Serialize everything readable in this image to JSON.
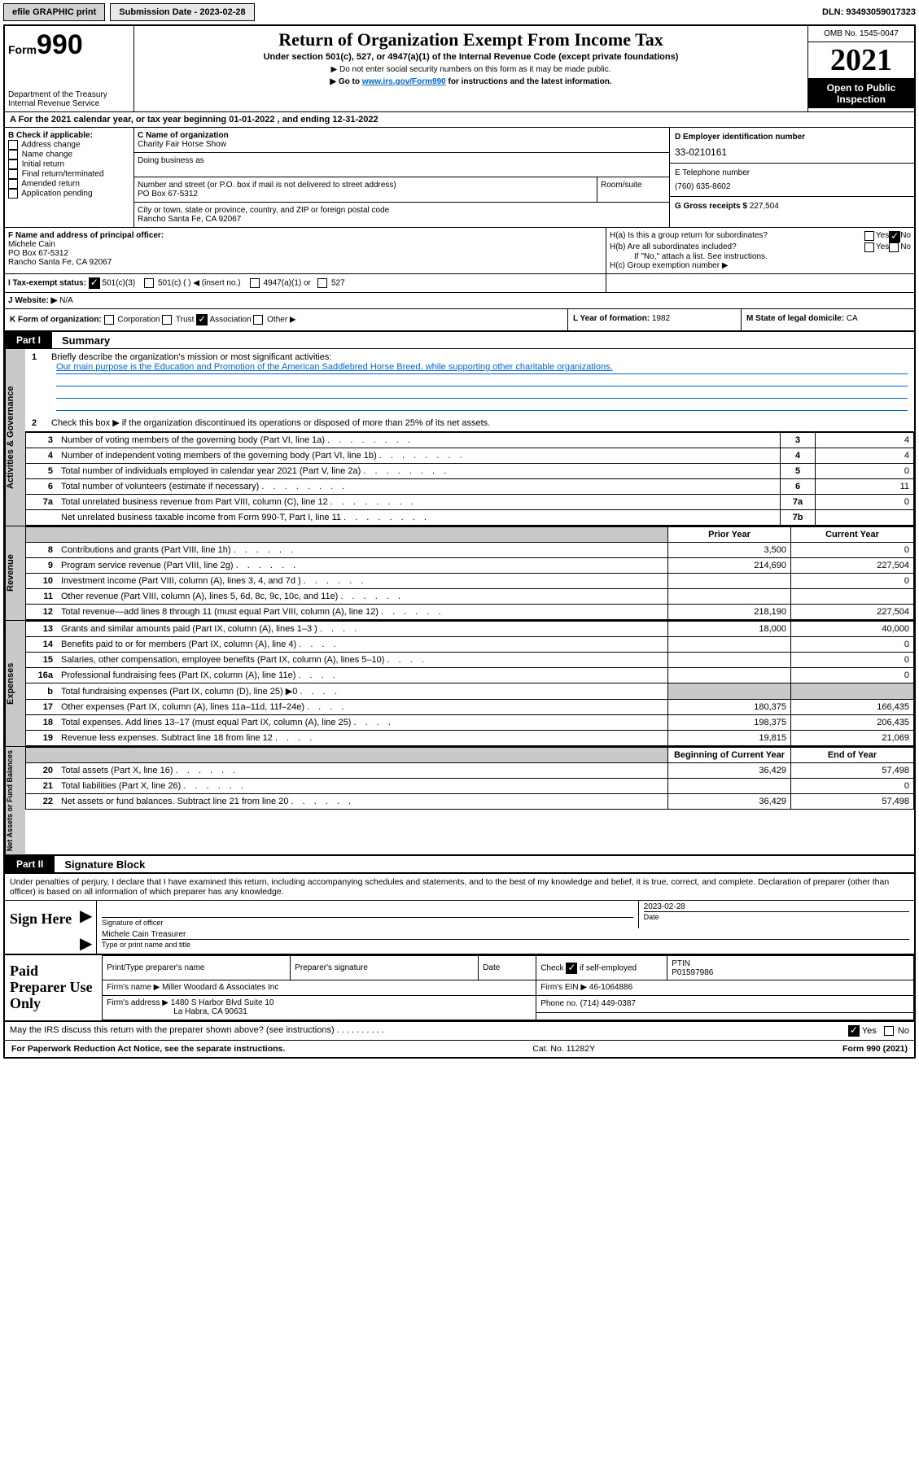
{
  "topbar": {
    "efile": "efile GRAPHIC print",
    "submission_label": "Submission Date - ",
    "submission_date": "2023-02-28",
    "dln_label": "DLN: ",
    "dln": "93493059017323"
  },
  "header": {
    "form_prefix": "Form",
    "form_number": "990",
    "title": "Return of Organization Exempt From Income Tax",
    "subtitle": "Under section 501(c), 527, or 4947(a)(1) of the Internal Revenue Code (except private foundations)",
    "note1": "▶ Do not enter social security numbers on this form as it may be made public.",
    "note2_pre": "▶ Go to ",
    "note2_link": "www.irs.gov/Form990",
    "note2_post": " for instructions and the latest information.",
    "dept": "Department of the Treasury\nInternal Revenue Service",
    "omb": "OMB No. 1545-0047",
    "year": "2021",
    "open": "Open to Public Inspection"
  },
  "rowA": "A For the 2021 calendar year, or tax year beginning 01-01-2022    , and ending 12-31-2022",
  "secB": {
    "label": "B Check if applicable:",
    "items": [
      "Address change",
      "Name change",
      "Initial return",
      "Final return/terminated",
      "Amended return",
      "Application pending"
    ]
  },
  "secC": {
    "name_label": "C Name of organization",
    "name": "Charity Fair Horse Show",
    "dba_label": "Doing business as",
    "street_label": "Number and street (or P.O. box if mail is not delivered to street address)",
    "room_label": "Room/suite",
    "street": "PO Box 67-5312",
    "city_label": "City or town, state or province, country, and ZIP or foreign postal code",
    "city": "Rancho Santa Fe, CA  92067"
  },
  "secD": {
    "label": "D Employer identification number",
    "value": "33-0210161"
  },
  "secE": {
    "label": "E Telephone number",
    "value": "(760) 635-8602"
  },
  "secG": {
    "label": "G Gross receipts $ ",
    "value": "227,504"
  },
  "secF": {
    "label": "F  Name and address of principal officer:",
    "name": "Michele Cain",
    "addr1": "PO Box 67-5312",
    "addr2": "Rancho Santa Fe, CA  92067"
  },
  "secH": {
    "ha": "H(a)  Is this a group return for subordinates?",
    "hb": "H(b)  Are all subordinates included?",
    "hnote": "If \"No,\" attach a list. See instructions.",
    "hc": "H(c)  Group exemption number ▶"
  },
  "secI": {
    "label": "I   Tax-exempt status:",
    "opts": [
      "501(c)(3)",
      "501(c) (  ) ◀ (insert no.)",
      "4947(a)(1) or",
      "527"
    ]
  },
  "secJ": {
    "label": "J   Website: ▶",
    "value": "N/A"
  },
  "secK": {
    "label": "K Form of organization:",
    "opts": [
      "Corporation",
      "Trust",
      "Association",
      "Other ▶"
    ]
  },
  "secL": {
    "label": "L Year of formation: ",
    "value": "1982"
  },
  "secM": {
    "label": "M State of legal domicile: ",
    "value": "CA"
  },
  "partI": {
    "tag": "Part I",
    "label": "Summary",
    "q1": "Briefly describe the organization's mission or most significant activities:",
    "mission": "Our main purpose is the Education and Promotion of the American Saddlebred Horse Breed, while supporting other charitable organizations.",
    "q2": "Check this box ▶      if the organization discontinued its operations or disposed of more than 25% of its net assets.",
    "lines_activities": [
      [
        "3",
        "Number of voting members of the governing body (Part VI, line 1a)",
        "3",
        "4"
      ],
      [
        "4",
        "Number of independent voting members of the governing body (Part VI, line 1b)",
        "4",
        "4"
      ],
      [
        "5",
        "Total number of individuals employed in calendar year 2021 (Part V, line 2a)",
        "5",
        "0"
      ],
      [
        "6",
        "Total number of volunteers (estimate if necessary)",
        "6",
        "11"
      ],
      [
        "7a",
        "Total unrelated business revenue from Part VIII, column (C), line 12",
        "7a",
        "0"
      ],
      [
        "",
        "Net unrelated business taxable income from Form 990-T, Part I, line 11",
        "7b",
        ""
      ]
    ],
    "hdr_prior": "Prior Year",
    "hdr_current": "Current Year",
    "revenue": [
      [
        "8",
        "Contributions and grants (Part VIII, line 1h)",
        "3,500",
        "0"
      ],
      [
        "9",
        "Program service revenue (Part VIII, line 2g)",
        "214,690",
        "227,504"
      ],
      [
        "10",
        "Investment income (Part VIII, column (A), lines 3, 4, and 7d )",
        "",
        "0"
      ],
      [
        "11",
        "Other revenue (Part VIII, column (A), lines 5, 6d, 8c, 9c, 10c, and 11e)",
        "",
        ""
      ],
      [
        "12",
        "Total revenue—add lines 8 through 11 (must equal Part VIII, column (A), line 12)",
        "218,190",
        "227,504"
      ]
    ],
    "expenses": [
      [
        "13",
        "Grants and similar amounts paid (Part IX, column (A), lines 1–3 )",
        "18,000",
        "40,000"
      ],
      [
        "14",
        "Benefits paid to or for members (Part IX, column (A), line 4)",
        "",
        "0"
      ],
      [
        "15",
        "Salaries, other compensation, employee benefits (Part IX, column (A), lines 5–10)",
        "",
        "0"
      ],
      [
        "16a",
        "Professional fundraising fees (Part IX, column (A), line 11e)",
        "",
        "0"
      ],
      [
        "b",
        "Total fundraising expenses (Part IX, column (D), line 25) ▶0",
        "grey",
        "grey"
      ],
      [
        "17",
        "Other expenses (Part IX, column (A), lines 11a–11d, 11f–24e)",
        "180,375",
        "166,435"
      ],
      [
        "18",
        "Total expenses. Add lines 13–17 (must equal Part IX, column (A), line 25)",
        "198,375",
        "206,435"
      ],
      [
        "19",
        "Revenue less expenses. Subtract line 18 from line 12",
        "19,815",
        "21,069"
      ]
    ],
    "hdr_begin": "Beginning of Current Year",
    "hdr_end": "End of Year",
    "netassets": [
      [
        "20",
        "Total assets (Part X, line 16)",
        "36,429",
        "57,498"
      ],
      [
        "21",
        "Total liabilities (Part X, line 26)",
        "",
        "0"
      ],
      [
        "22",
        "Net assets or fund balances. Subtract line 21 from line 20",
        "36,429",
        "57,498"
      ]
    ]
  },
  "partII": {
    "tag": "Part II",
    "label": "Signature Block",
    "decl": "Under penalties of perjury, I declare that I have examined this return, including accompanying schedules and statements, and to the best of my knowledge and belief, it is true, correct, and complete. Declaration of preparer (other than officer) is based on all information of which preparer has any knowledge.",
    "sign_here": "Sign Here",
    "sig_officer": "Signature of officer",
    "date_label": "Date",
    "date": "2023-02-28",
    "officer_line": "Michele Cain  Treasurer",
    "type_name": "Type or print name and title",
    "paid": "Paid Preparer Use Only",
    "pt_name": "Print/Type preparer's name",
    "pt_sig": "Preparer's signature",
    "check_self": "Check        if self-employed",
    "ptin_label": "PTIN",
    "ptin": "P01597986",
    "firm_name_label": "Firm's name    ▶ ",
    "firm_name": "Miller Woodard & Associates Inc",
    "firm_ein_label": "Firm's EIN ▶ ",
    "firm_ein": "46-1064886",
    "firm_addr_label": "Firm's address ▶ ",
    "firm_addr": "1480 S Harbor Blvd Suite 10",
    "firm_addr2": "La Habra, CA  90631",
    "phone_label": "Phone no. ",
    "phone": "(714) 449-0387",
    "discuss": "May the IRS discuss this return with the preparer shown above? (see instructions)"
  },
  "footer": {
    "left": "For Paperwork Reduction Act Notice, see the separate instructions.",
    "mid": "Cat. No. 11282Y",
    "right": "Form 990 (2021)"
  }
}
